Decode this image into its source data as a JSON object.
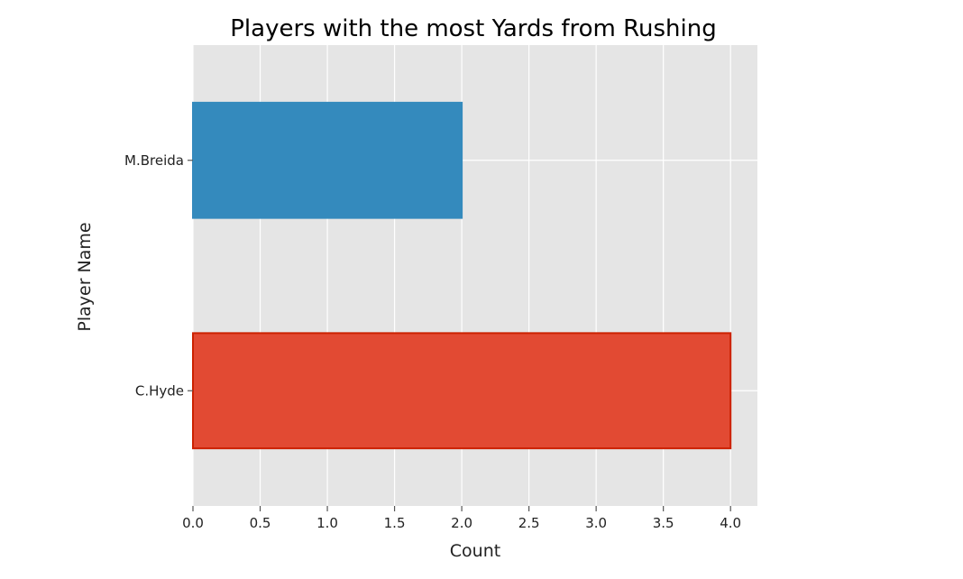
{
  "chart_data": {
    "type": "bar",
    "orientation": "horizontal",
    "title": "Players with the most Yards from Rushing",
    "xlabel": "Count",
    "ylabel": "Player Name",
    "categories": [
      "C.Hyde",
      "M.Breida"
    ],
    "values": [
      4,
      2
    ],
    "bar_colors": [
      "#E24A33",
      "#348ABD"
    ],
    "bar_edge_colors": [
      "#CC2200",
      "#348ABD"
    ],
    "xlim": [
      0,
      4.2
    ],
    "xticks": [
      "0.0",
      "0.5",
      "1.0",
      "1.5",
      "2.0",
      "2.5",
      "3.0",
      "3.5",
      "4.0"
    ],
    "grid": true,
    "legend": "none",
    "background_color": "#E5E5E5",
    "grid_color": "#FFFFFF"
  }
}
